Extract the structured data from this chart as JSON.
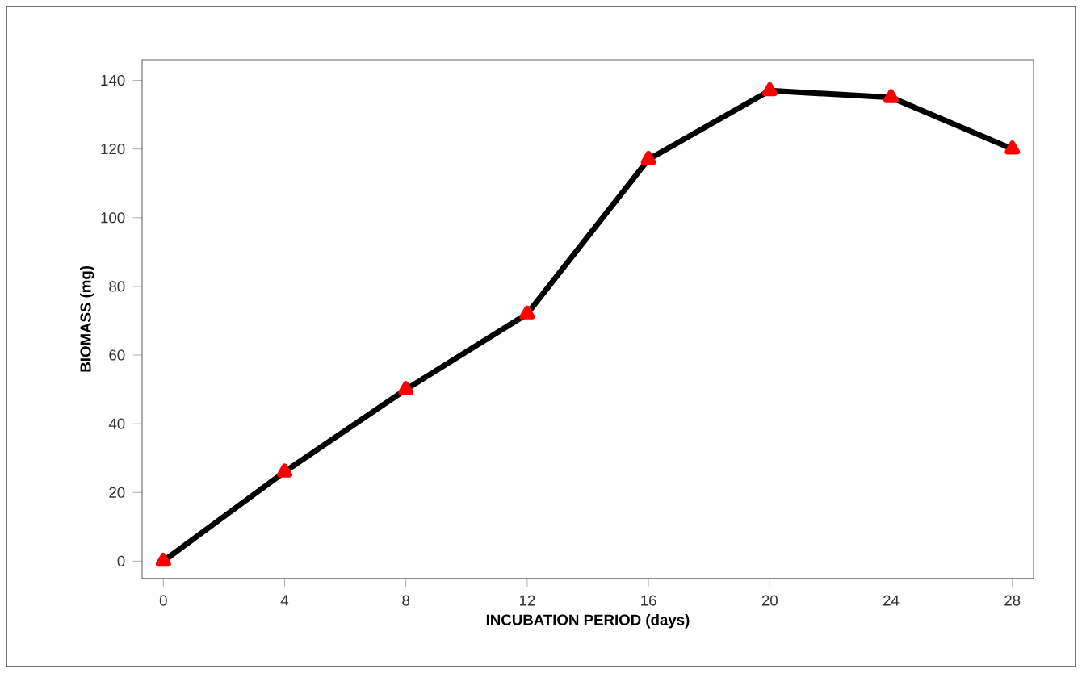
{
  "chart_data": {
    "type": "line",
    "xlabel": "INCUBATION PERIOD (days)",
    "ylabel": "BIOMASS (mg)",
    "x": [
      0,
      4,
      8,
      12,
      16,
      20,
      24,
      28
    ],
    "values": [
      0,
      26,
      50,
      72,
      117,
      137,
      135,
      120
    ],
    "color": "#000000",
    "marker": "triangle",
    "line_style": "solid",
    "xlim": [
      -0.7,
      28.7
    ],
    "ylim": [
      -5,
      146
    ],
    "xticks": [
      0,
      4,
      8,
      12,
      16,
      20,
      24,
      28
    ],
    "yticks": [
      0,
      20,
      40,
      60,
      80,
      100,
      120,
      140
    ]
  }
}
